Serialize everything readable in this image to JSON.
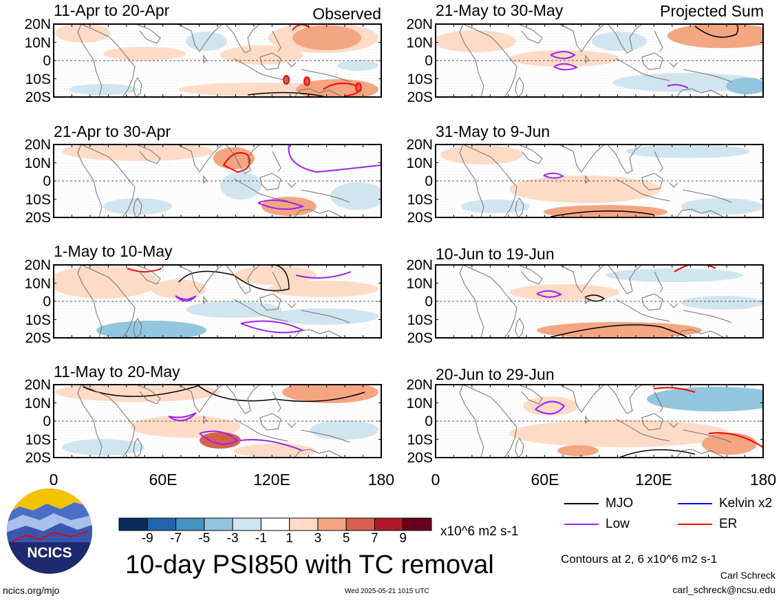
{
  "panels": [
    {
      "id": "p1",
      "title": "11-Apr to 20-Apr",
      "tag": "Observed"
    },
    {
      "id": "p2",
      "title": "21-Apr to 30-Apr",
      "tag": ""
    },
    {
      "id": "p3",
      "title": "1-May to 10-May",
      "tag": ""
    },
    {
      "id": "p4",
      "title": "11-May to 20-May",
      "tag": ""
    },
    {
      "id": "p5",
      "title": "21-May to 30-May",
      "tag": "Projected Sum"
    },
    {
      "id": "p6",
      "title": "31-May to 9-Jun",
      "tag": ""
    },
    {
      "id": "p7",
      "title": "10-Jun to 19-Jun",
      "tag": ""
    },
    {
      "id": "p8",
      "title": "20-Jun to 29-Jun",
      "tag": ""
    }
  ],
  "lat_labels": [
    "20N",
    "10N",
    "0",
    "10S",
    "20S"
  ],
  "lon_labels": [
    "0",
    "60E",
    "120E",
    "180"
  ],
  "colorbar": {
    "labels": [
      "-9",
      "-7",
      "-5",
      "-3",
      "-1",
      "1",
      "3",
      "5",
      "7",
      "9"
    ],
    "colors": [
      "#0a2c5c",
      "#2166ac",
      "#4393c3",
      "#92c5de",
      "#d1e5f0",
      "#ffffff",
      "#fddbc7",
      "#f4a582",
      "#d6604d",
      "#b2182b",
      "#67001f"
    ],
    "units": "x10^6 m2 s-1"
  },
  "legend": {
    "items": [
      {
        "label": "MJO",
        "color": "#000000"
      },
      {
        "label": "Kelvin x2",
        "color": "#0000ff"
      },
      {
        "label": "Low",
        "color": "#a020f0"
      },
      {
        "label": "ER",
        "color": "#ff0000"
      }
    ],
    "contour_note": "Contours at 2, 6 x10^6 m2 s-1"
  },
  "logo": {
    "text": "NCICS"
  },
  "main_title": "10-day PSI850 with TC removal",
  "footer": {
    "url": "ncics.org/mjo",
    "timestamp": "Wed 2025-05-21 1015 UTC",
    "author": "Carl Schreck",
    "email": "carl_schreck@ncsu.edu"
  }
}
